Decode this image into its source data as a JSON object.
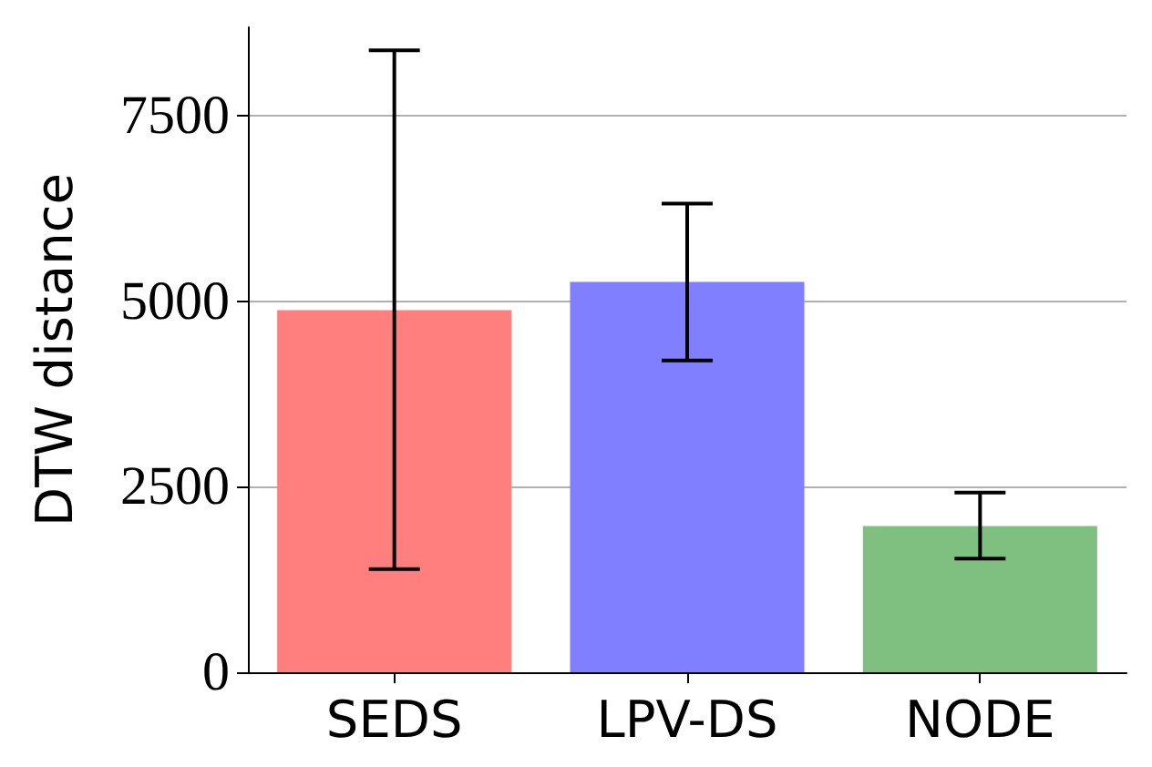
{
  "chart_data": {
    "type": "bar",
    "ylabel": "DTW distance",
    "categories": [
      "SEDS",
      "LPV-DS",
      "NODE"
    ],
    "values": [
      4880,
      5260,
      1970
    ],
    "colors": [
      "#ff7f7f",
      "#7f7fff",
      "#7fbf7f"
    ],
    "errors": [
      [
        1390,
        8380
      ],
      [
        4200,
        6315
      ],
      [
        1530,
        2420
      ]
    ],
    "ylim": [
      0,
      8690
    ],
    "yticks": [
      0,
      2500,
      5000,
      7500
    ],
    "grid": "y"
  }
}
